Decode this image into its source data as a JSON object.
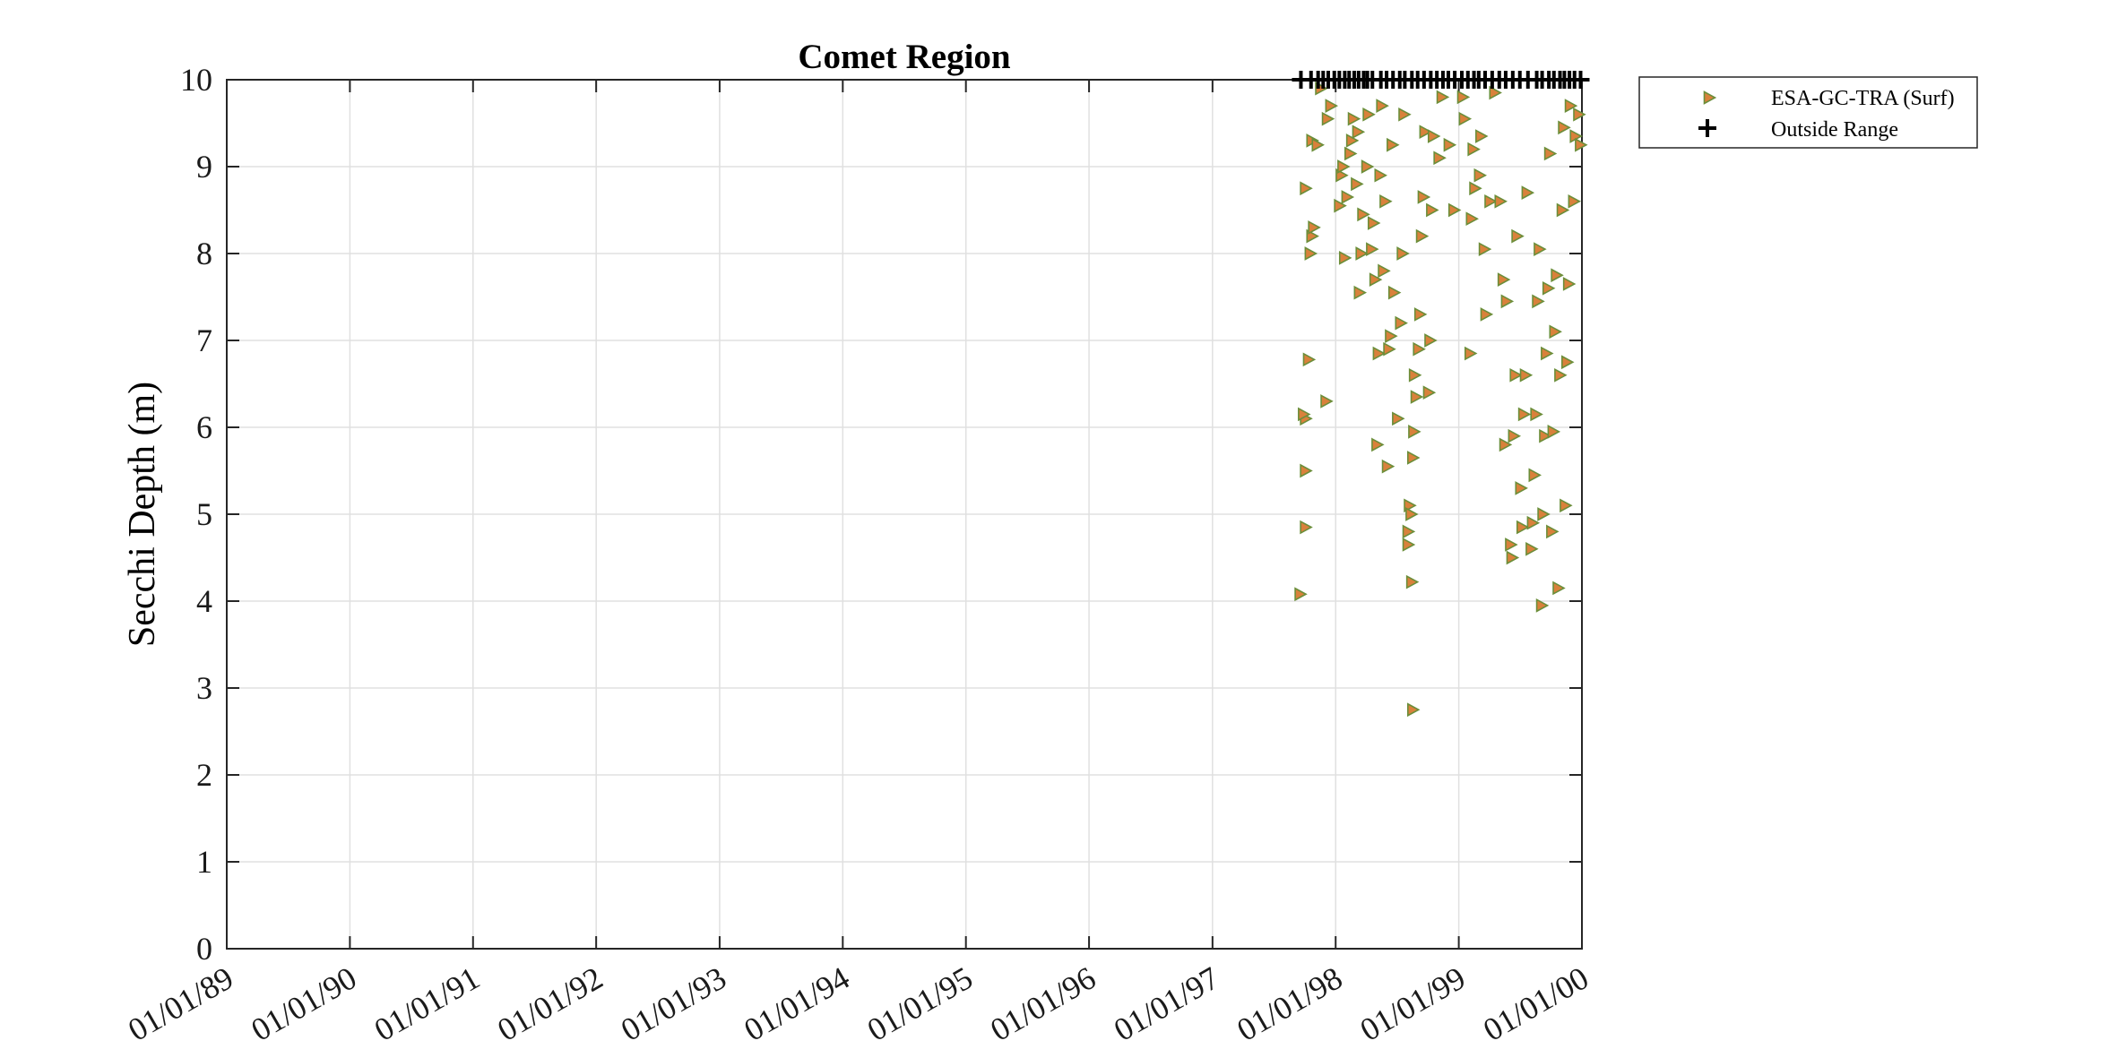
{
  "chart_data": {
    "type": "scatter",
    "title": "Comet Region",
    "ylabel": "Secchi Depth (m)",
    "xlabel": "",
    "xlim": [
      "01/01/89",
      "01/01/00"
    ],
    "ylim": [
      0,
      10
    ],
    "x_ticks": [
      "01/01/89",
      "01/01/90",
      "01/01/91",
      "01/01/92",
      "01/01/93",
      "01/01/94",
      "01/01/95",
      "01/01/96",
      "01/01/97",
      "01/01/98",
      "01/01/99",
      "01/01/00"
    ],
    "y_ticks": [
      0,
      1,
      2,
      3,
      4,
      5,
      6,
      7,
      8,
      9,
      10
    ],
    "grid": true,
    "legend_position": "outside-top-right",
    "colors": {
      "marker_fill": "#d9813b",
      "marker_edge": "#6b8e3a",
      "outside": "#000000",
      "grid": "#e0e0e0"
    },
    "series": [
      {
        "name": "ESA-GC-TRA (Surf)",
        "marker": "triangle-right",
        "points": [
          [
            "09/15/97",
            4.08
          ],
          [
            "10/01/97",
            4.85
          ],
          [
            "10/01/97",
            5.5
          ],
          [
            "10/01/97",
            6.1
          ],
          [
            "09/25/97",
            6.15
          ],
          [
            "10/10/97",
            6.78
          ],
          [
            "10/01/97",
            8.75
          ],
          [
            "10/15/97",
            8.0
          ],
          [
            "10/20/97",
            8.2
          ],
          [
            "10/25/97",
            8.3
          ],
          [
            "10/20/97",
            9.3
          ],
          [
            "11/05/97",
            9.25
          ],
          [
            "11/15/97",
            9.9
          ],
          [
            "12/01/97",
            6.3
          ],
          [
            "12/05/97",
            9.55
          ],
          [
            "12/15/97",
            9.7
          ],
          [
            "01/10/98",
            8.55
          ],
          [
            "01/15/98",
            8.9
          ],
          [
            "01/20/98",
            9.0
          ],
          [
            "01/25/98",
            7.95
          ],
          [
            "02/01/98",
            8.65
          ],
          [
            "02/10/98",
            9.15
          ],
          [
            "02/15/98",
            9.3
          ],
          [
            "02/20/98",
            9.55
          ],
          [
            "03/01/98",
            8.8
          ],
          [
            "03/05/98",
            9.4
          ],
          [
            "03/10/98",
            7.55
          ],
          [
            "03/15/98",
            8.0
          ],
          [
            "03/20/98",
            8.45
          ],
          [
            "04/01/98",
            9.0
          ],
          [
            "04/05/98",
            9.6
          ],
          [
            "04/15/98",
            8.05
          ],
          [
            "04/20/98",
            8.35
          ],
          [
            "04/25/98",
            7.7
          ],
          [
            "05/01/98",
            5.8
          ],
          [
            "05/05/98",
            6.85
          ],
          [
            "05/10/98",
            8.9
          ],
          [
            "05/15/98",
            9.7
          ],
          [
            "05/20/98",
            7.8
          ],
          [
            "05/25/98",
            8.6
          ],
          [
            "06/01/98",
            5.55
          ],
          [
            "06/05/98",
            6.9
          ],
          [
            "06/10/98",
            7.05
          ],
          [
            "06/15/98",
            9.25
          ],
          [
            "06/20/98",
            7.55
          ],
          [
            "07/01/98",
            6.1
          ],
          [
            "07/10/98",
            7.2
          ],
          [
            "07/15/98",
            8.0
          ],
          [
            "07/20/98",
            9.6
          ],
          [
            "08/01/98",
            4.65
          ],
          [
            "08/01/98",
            4.8
          ],
          [
            "08/05/98",
            5.1
          ],
          [
            "08/10/98",
            5.0
          ],
          [
            "08/12/98",
            4.22
          ],
          [
            "08/15/98",
            2.75
          ],
          [
            "08/15/98",
            5.65
          ],
          [
            "08/18/98",
            5.95
          ],
          [
            "08/20/98",
            6.6
          ],
          [
            "08/25/98",
            6.35
          ],
          [
            "09/01/98",
            6.9
          ],
          [
            "09/05/98",
            7.3
          ],
          [
            "09/10/98",
            8.2
          ],
          [
            "09/15/98",
            8.65
          ],
          [
            "09/20/98",
            9.4
          ],
          [
            "10/01/98",
            6.4
          ],
          [
            "10/05/98",
            7.0
          ],
          [
            "10/10/98",
            8.5
          ],
          [
            "10/15/98",
            9.35
          ],
          [
            "11/01/98",
            9.1
          ],
          [
            "11/10/98",
            9.8
          ],
          [
            "12/01/98",
            9.25
          ],
          [
            "12/15/98",
            8.5
          ],
          [
            "01/10/99",
            9.8
          ],
          [
            "01/15/99",
            9.55
          ],
          [
            "02/01/99",
            6.85
          ],
          [
            "02/05/99",
            8.4
          ],
          [
            "02/10/99",
            9.2
          ],
          [
            "02/15/99",
            8.75
          ],
          [
            "03/01/99",
            8.9
          ],
          [
            "03/05/99",
            9.35
          ],
          [
            "03/15/99",
            8.05
          ],
          [
            "03/20/99",
            7.3
          ],
          [
            "04/01/99",
            8.6
          ],
          [
            "04/15/99",
            9.85
          ],
          [
            "05/01/99",
            8.6
          ],
          [
            "05/10/99",
            7.7
          ],
          [
            "05/15/99",
            5.8
          ],
          [
            "05/20/99",
            7.45
          ],
          [
            "06/01/99",
            4.65
          ],
          [
            "06/05/99",
            4.5
          ],
          [
            "06/10/99",
            5.9
          ],
          [
            "06/15/99",
            6.6
          ],
          [
            "06/20/99",
            8.2
          ],
          [
            "07/01/99",
            5.3
          ],
          [
            "07/05/99",
            4.85
          ],
          [
            "07/10/99",
            6.15
          ],
          [
            "07/15/99",
            6.6
          ],
          [
            "07/20/99",
            8.7
          ],
          [
            "08/01/99",
            4.6
          ],
          [
            "08/05/99",
            4.9
          ],
          [
            "08/10/99",
            5.45
          ],
          [
            "08/15/99",
            6.15
          ],
          [
            "08/20/99",
            7.45
          ],
          [
            "08/25/99",
            8.05
          ],
          [
            "09/01/99",
            3.95
          ],
          [
            "09/05/99",
            5.0
          ],
          [
            "09/10/99",
            5.9
          ],
          [
            "09/15/99",
            6.85
          ],
          [
            "09/20/99",
            7.6
          ],
          [
            "09/25/99",
            9.15
          ],
          [
            "10/01/99",
            4.8
          ],
          [
            "10/05/99",
            5.95
          ],
          [
            "10/10/99",
            7.1
          ],
          [
            "10/15/99",
            7.75
          ],
          [
            "10/20/99",
            4.15
          ],
          [
            "10/25/99",
            6.6
          ],
          [
            "11/01/99",
            8.5
          ],
          [
            "11/05/99",
            9.45
          ],
          [
            "11/10/99",
            5.1
          ],
          [
            "11/15/99",
            6.75
          ],
          [
            "11/20/99",
            7.65
          ],
          [
            "11/25/99",
            9.7
          ],
          [
            "12/05/99",
            8.6
          ],
          [
            "12/10/99",
            9.35
          ],
          [
            "12/20/99",
            9.6
          ],
          [
            "12/25/99",
            9.25
          ]
        ]
      },
      {
        "name": "Outside Range",
        "marker": "plus",
        "y": 10,
        "x": [
          "09/20/97",
          "10/20/97",
          "11/10/97",
          "11/25/97",
          "12/10/97",
          "12/28/97",
          "01/12/98",
          "01/28/98",
          "02/10/98",
          "02/25/98",
          "03/10/98",
          "03/25/98",
          "04/05/98",
          "04/20/98",
          "05/15/98",
          "06/01/98",
          "06/20/98",
          "07/10/98",
          "07/25/98",
          "08/15/98",
          "09/01/98",
          "09/20/98",
          "10/10/98",
          "10/28/98",
          "11/15/98",
          "12/01/98",
          "12/20/98",
          "01/10/99",
          "01/28/99",
          "02/15/99",
          "03/01/99",
          "03/20/99",
          "04/10/99",
          "05/01/99",
          "05/20/99",
          "06/10/99",
          "07/01/99",
          "07/25/99",
          "08/20/99",
          "09/05/99",
          "09/25/99",
          "10/10/99",
          "10/28/99",
          "11/10/99",
          "11/25/99",
          "12/10/99",
          "12/28/99"
        ]
      }
    ]
  }
}
